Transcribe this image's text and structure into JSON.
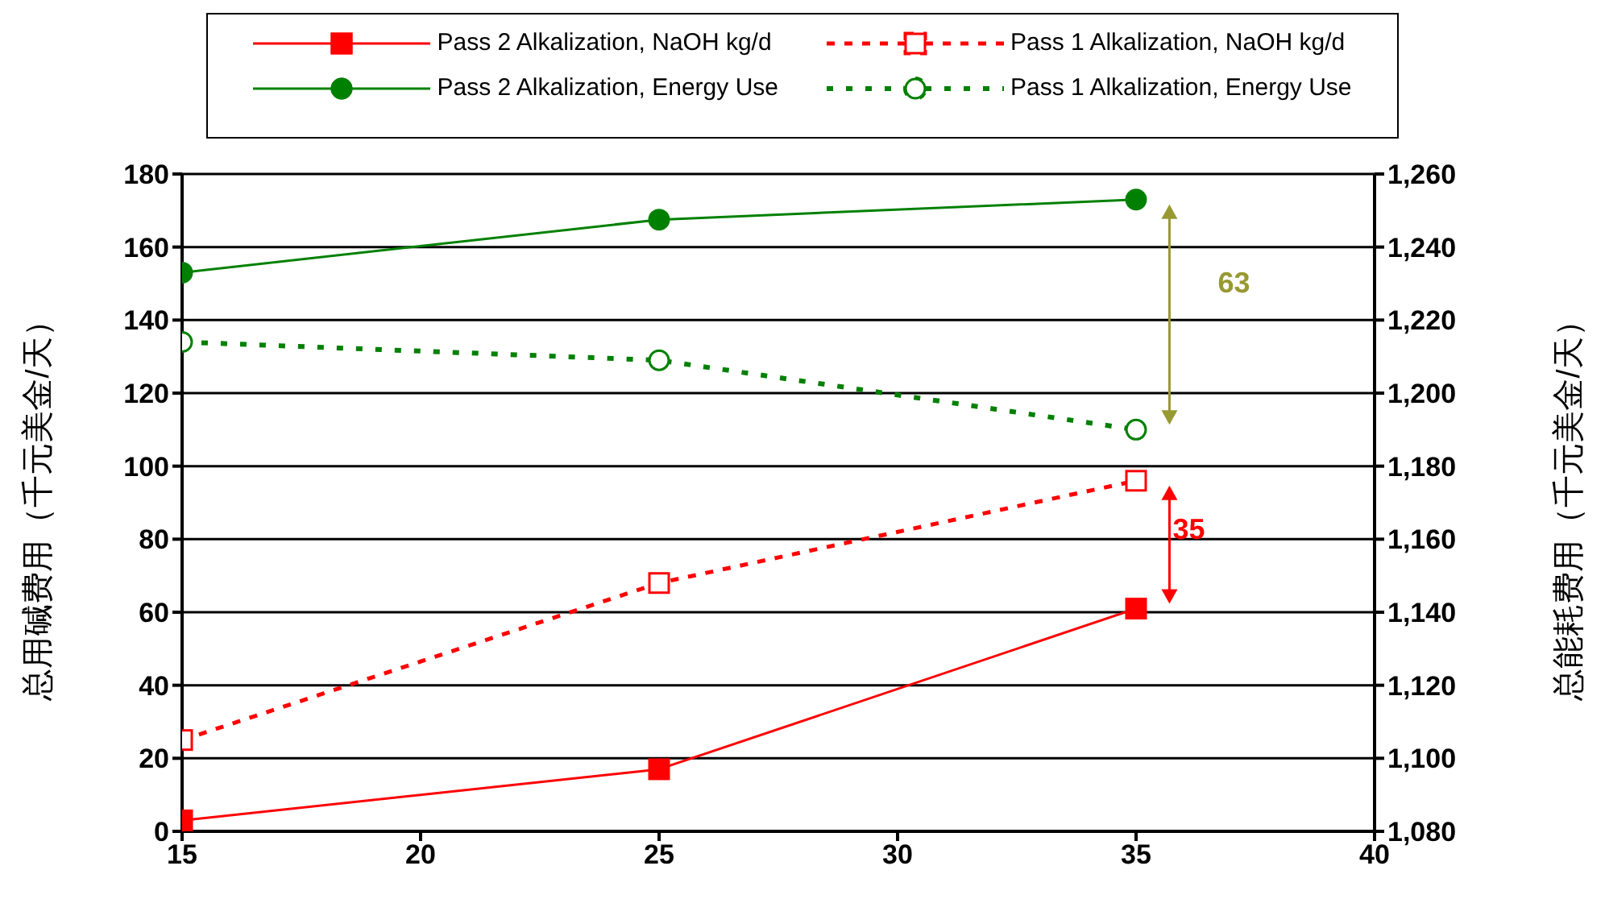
{
  "chart_data": {
    "type": "line",
    "ylabel": "总用碱费用（千元美金/天）",
    "y2label": "总能耗费用（千元美金/天）",
    "x": [
      15,
      25,
      35
    ],
    "xlim": [
      15,
      40
    ],
    "xticks": [
      15,
      20,
      25,
      30,
      35,
      40
    ],
    "ylim": [
      0,
      180
    ],
    "yticks": [
      0,
      20,
      40,
      60,
      80,
      100,
      120,
      140,
      160,
      180
    ],
    "y2lim": [
      1080,
      1260
    ],
    "y2ticks": [
      {
        "value": 1080,
        "label": "1,080"
      },
      {
        "value": 1100,
        "label": "1,100"
      },
      {
        "value": 1120,
        "label": "1,120"
      },
      {
        "value": 1140,
        "label": "1,140"
      },
      {
        "value": 1160,
        "label": "1,160"
      },
      {
        "value": 1180,
        "label": "1,180"
      },
      {
        "value": 1200,
        "label": "1,200"
      },
      {
        "value": 1220,
        "label": "1,220"
      },
      {
        "value": 1240,
        "label": "1,240"
      },
      {
        "value": 1260,
        "label": "1,260"
      }
    ],
    "series": [
      {
        "name": "Pass 2 Alkalization, NaOH kg/d",
        "color": "#ff0000",
        "values": [
          3,
          17,
          61
        ],
        "marker": "square",
        "line_style": "solid"
      },
      {
        "name": "Pass 1 Alkalization, NaOH kg/d",
        "color": "#ff0000",
        "values": [
          25,
          68,
          96
        ],
        "marker": "square",
        "line_style": "dashed"
      },
      {
        "name": "Pass 2 Alkalization, Energy Use",
        "color": "#008000",
        "values": [
          1233,
          1247.5,
          1253
        ],
        "marker": "circle",
        "line_style": "solid",
        "axis": "y2"
      },
      {
        "name": "Pass 1 Alkalization, Energy Use",
        "color": "#008000",
        "values": [
          1214,
          1209,
          1190
        ],
        "marker": "circle",
        "line_style": "dotted",
        "axis": "y2"
      }
    ],
    "annotations": [
      "63",
      "35"
    ],
    "grid": "y",
    "legend": "top"
  }
}
